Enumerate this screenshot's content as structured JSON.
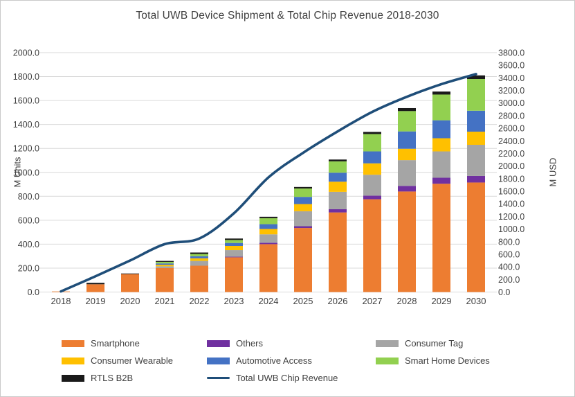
{
  "title": "Total UWB Device Shipment & Total Chip Revenue 2018-2030",
  "colors": {
    "text": "#404040",
    "grid": "#D9D9D9",
    "frame_border": "#C9C9C9",
    "line": "#1F4E79"
  },
  "chart_data": {
    "type": "combo-stacked-bar-line",
    "title": "Total UWB Device Shipment & Total Chip Revenue 2018-2030",
    "categories": [
      "2018",
      "2019",
      "2020",
      "2021",
      "2022",
      "2023",
      "2024",
      "2025",
      "2026",
      "2027",
      "2028",
      "2029",
      "2030"
    ],
    "series": [
      {
        "name": "Smartphone",
        "color": "#ED7D31",
        "values": [
          5,
          65,
          150,
          200,
          220,
          290,
          400,
          535,
          665,
          775,
          840,
          905,
          915
        ]
      },
      {
        "name": "Others",
        "color": "#7030A0",
        "values": [
          0,
          0,
          0,
          0,
          0,
          5,
          12,
          15,
          27,
          30,
          47,
          50,
          55
        ]
      },
      {
        "name": "Consumer Tag",
        "color": "#A5A5A5",
        "values": [
          0,
          0,
          0,
          15,
          40,
          55,
          70,
          125,
          145,
          175,
          215,
          220,
          260
        ]
      },
      {
        "name": "Consumer Wearable",
        "color": "#FFC000",
        "values": [
          0,
          0,
          0,
          13,
          22,
          35,
          45,
          60,
          85,
          95,
          95,
          110,
          110
        ]
      },
      {
        "name": "Automotive Access",
        "color": "#4472C4",
        "values": [
          0,
          0,
          0,
          11,
          17,
          25,
          40,
          60,
          75,
          100,
          145,
          150,
          175
        ]
      },
      {
        "name": "Smart Home Devices",
        "color": "#92D050",
        "values": [
          0,
          0,
          0,
          13,
          19,
          25,
          50,
          70,
          95,
          145,
          170,
          215,
          265
        ]
      },
      {
        "name": "RTLS B2B",
        "color": "#1A1A1A",
        "values": [
          0,
          12,
          5,
          8,
          12,
          12,
          12,
          13,
          15,
          18,
          25,
          25,
          30
        ]
      }
    ],
    "line_series": {
      "name": "Total UWB Chip Revenue",
      "color": "#1F4E79",
      "axis": "right",
      "values": [
        10,
        250,
        500,
        760,
        850,
        1250,
        1820,
        2210,
        2550,
        2860,
        3100,
        3300,
        3460
      ]
    },
    "y_left": {
      "label": "M Units",
      "min": 0,
      "max": 2000,
      "step": 200,
      "tick_format": "one_decimal"
    },
    "y_right": {
      "label": "M USD",
      "min": 0,
      "max": 3800,
      "step": 200,
      "tick_format": "one_decimal"
    },
    "x_axis": {
      "label": ""
    },
    "grid": true,
    "legend_position": "bottom"
  }
}
